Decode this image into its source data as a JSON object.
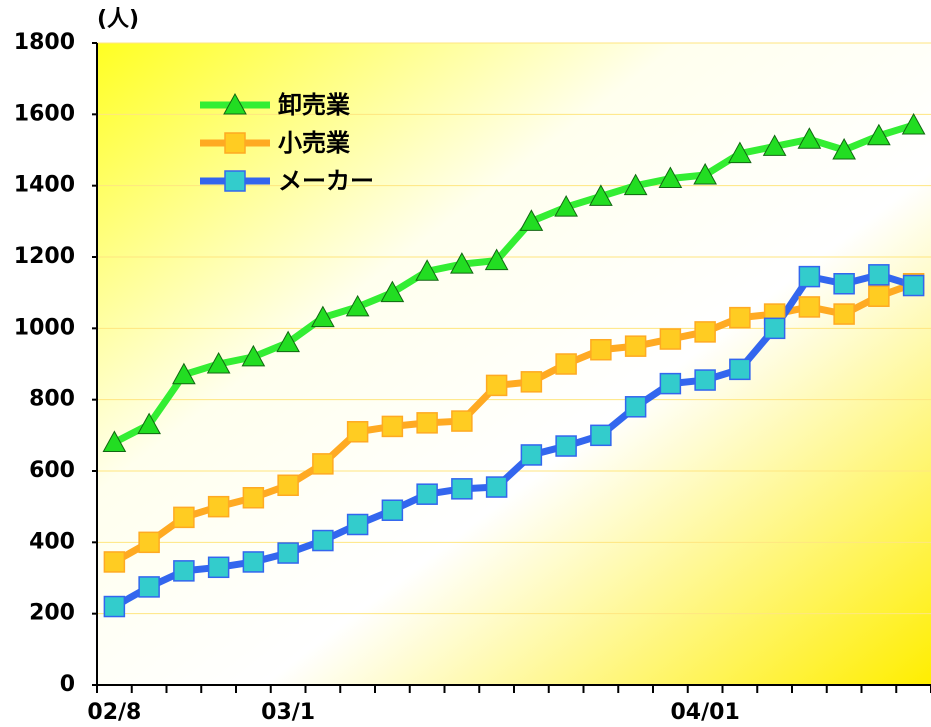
{
  "chart_data": {
    "type": "line",
    "unit_label": "(人)",
    "categories": [
      "02/8",
      null,
      null,
      null,
      null,
      "03/1",
      null,
      null,
      null,
      null,
      null,
      null,
      null,
      null,
      null,
      null,
      null,
      "04/01",
      null,
      null,
      null,
      null,
      null,
      null
    ],
    "series": [
      {
        "name": "卸売業",
        "color": "#33ee33",
        "marker": "triangle",
        "marker_color": "#22dd22",
        "values": [
          680,
          730,
          870,
          900,
          920,
          960,
          1030,
          1060,
          1100,
          1160,
          1180,
          1190,
          1300,
          1340,
          1370,
          1400,
          1420,
          1430,
          1490,
          1510,
          1530,
          1500,
          1540,
          1570
        ]
      },
      {
        "name": "小売業",
        "color": "#ffaa22",
        "marker": "square",
        "marker_color": "#ffcc22",
        "values": [
          345,
          400,
          470,
          500,
          525,
          560,
          620,
          710,
          725,
          735,
          740,
          840,
          850,
          900,
          940,
          950,
          970,
          990,
          1030,
          1040,
          1060,
          1040,
          1090,
          1125
        ]
      },
      {
        "name": "メーカー",
        "color": "#3366ee",
        "marker": "square",
        "marker_color": "#33cccc",
        "values": [
          220,
          275,
          320,
          330,
          345,
          370,
          405,
          450,
          490,
          535,
          550,
          555,
          645,
          670,
          700,
          780,
          845,
          855,
          885,
          1000,
          1145,
          1125,
          1150,
          1120
        ]
      }
    ],
    "ylim": [
      0,
      1800
    ],
    "yticks": [
      0,
      200,
      400,
      600,
      800,
      1000,
      1200,
      1400,
      1600,
      1800
    ],
    "grid": true,
    "legend": "upper left"
  }
}
